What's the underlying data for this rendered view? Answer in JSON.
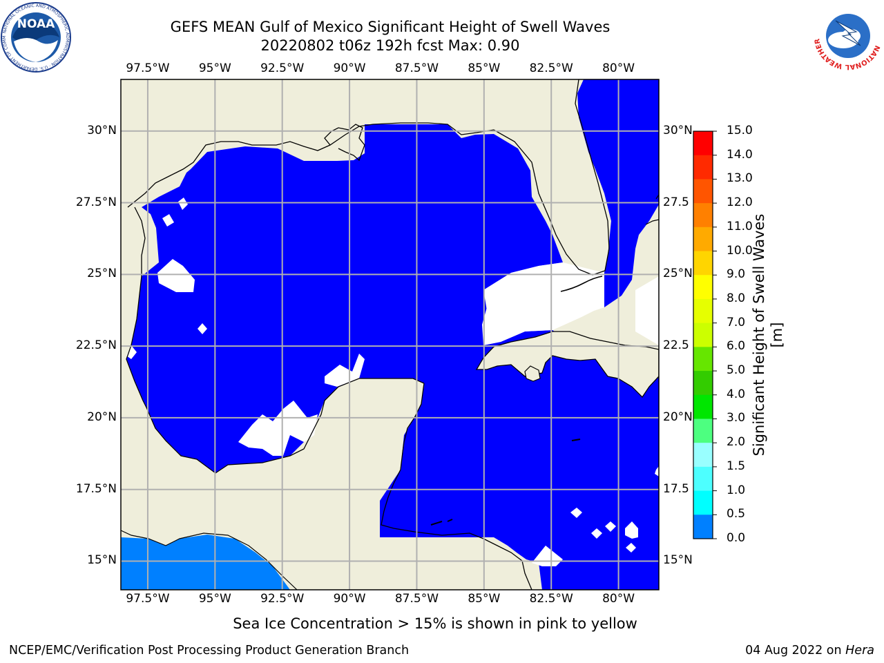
{
  "header": {
    "title_line1": "GEFS MEAN Gulf of Mexico Significant Height of Swell Waves",
    "title_line2": "20220802 t06z 192h fcst   Max: 0.90"
  },
  "logos": {
    "left": {
      "name": "noaa-logo",
      "text": "NOAA",
      "ring_text": "NATIONAL OCEANIC AND ATMOSPHERIC ADMINISTRATION · U.S. DEPARTMENT OF COMMERCE"
    },
    "right": {
      "name": "nws-logo",
      "ring_text": "NATIONAL WEATHER SERVICE"
    }
  },
  "map": {
    "lon_range": [
      -98.5,
      -78.5
    ],
    "lat_range": [
      14,
      31.8
    ],
    "lon_ticks": [
      "97.5°W",
      "95°W",
      "92.5°W",
      "90°W",
      "87.5°W",
      "85°W",
      "82.5°W",
      "80°W"
    ],
    "lat_ticks_left": [
      "30°N",
      "27.5°N",
      "25°N",
      "22.5°N",
      "20°N",
      "17.5°N",
      "15°N"
    ],
    "lat_ticks_right": [
      "30°N",
      "27.5",
      "25°N",
      "22.5",
      "20°N",
      "17.5",
      "15°N"
    ],
    "colors": {
      "land": "#efeedb",
      "swell_0_0.5": "#0000fe",
      "swell_0.5_1": "#0080ff",
      "gridline": "#b0b0b0",
      "no_data": "#ffffff"
    }
  },
  "colorbar": {
    "title": "Significant Height of Swell Waves [m]",
    "labels": [
      "15.0",
      "14.0",
      "13.0",
      "12.0",
      "11.0",
      "10.0",
      "9.0",
      "8.0",
      "7.0",
      "6.0",
      "5.0",
      "4.0",
      "3.0",
      "2.0",
      "1.5",
      "1.0",
      "0.5",
      "0.0"
    ],
    "colors": [
      "#ff0000",
      "#ff2a00",
      "#ff5500",
      "#ff8000",
      "#ffaa00",
      "#ffd500",
      "#ffff00",
      "#e6ff00",
      "#ccff00",
      "#66e600",
      "#33cc00",
      "#00e600",
      "#4dff80",
      "#99ffff",
      "#4dffff",
      "#00ffff",
      "#0080ff",
      "#0000ff"
    ]
  },
  "subtitle": "Sea Ice Concentration > 15% is shown in pink to yellow",
  "footer": {
    "left": "NCEP/EMC/Verification Post Processing Product Generation Branch",
    "right_prefix": "04 Aug 2022 on ",
    "right_host": "Hera"
  }
}
